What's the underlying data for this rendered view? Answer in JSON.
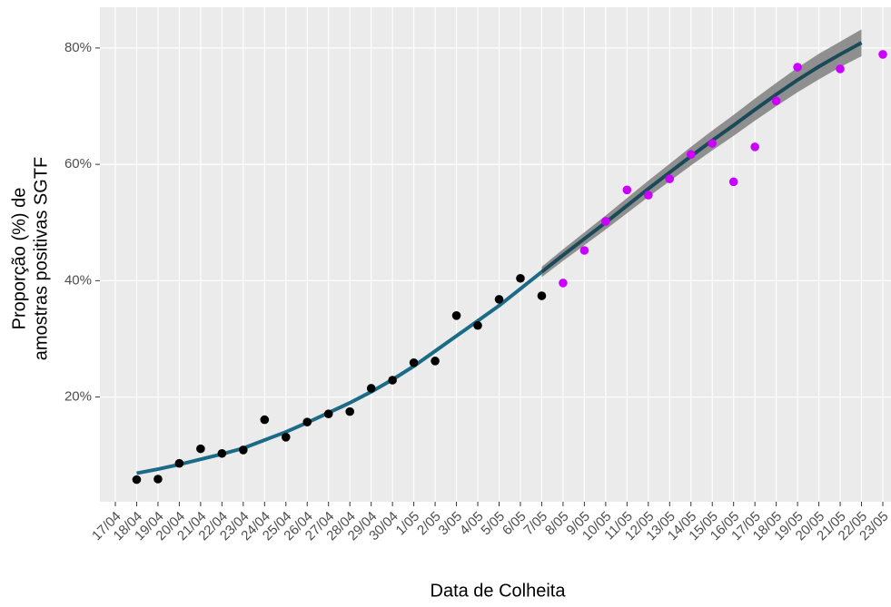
{
  "chart_data": {
    "type": "scatter",
    "x_label": "Data de Colheita",
    "y_label": [
      "Proporção (%) de",
      "amostras positivas SGTF"
    ],
    "categories": [
      "17/04",
      "18/04",
      "19/04",
      "20/04",
      "21/04",
      "22/04",
      "23/04",
      "24/04",
      "25/04",
      "26/04",
      "27/04",
      "28/04",
      "29/04",
      "30/04",
      "1/05",
      "2/05",
      "3/05",
      "4/05",
      "5/05",
      "6/05",
      "7/05",
      "8/05",
      "9/05",
      "10/05",
      "11/05",
      "12/05",
      "13/05",
      "14/05",
      "15/05",
      "16/05",
      "17/05",
      "18/05",
      "19/05",
      "20/05",
      "21/05",
      "22/05",
      "23/05"
    ],
    "ylim": [
      2,
      87
    ],
    "yticks": [
      {
        "value": 20,
        "label": "20%"
      },
      {
        "value": 40,
        "label": "40%"
      },
      {
        "value": 60,
        "label": "60%"
      },
      {
        "value": 80,
        "label": "80%"
      }
    ],
    "grid": true,
    "background": "#ebebeb",
    "series": [
      {
        "type": "scatter",
        "color": "#000000",
        "values": [
          null,
          5.8,
          5.9,
          8.6,
          11.1,
          10.3,
          10.9,
          16.1,
          13.1,
          15.7,
          17.1,
          17.5,
          21.5,
          22.9,
          25.9,
          26.2,
          34.0,
          32.3,
          36.8,
          40.4,
          37.4,
          null,
          null,
          null,
          null,
          null,
          null,
          null,
          null,
          null,
          null,
          null,
          null,
          null,
          null,
          null,
          null
        ]
      },
      {
        "type": "scatter",
        "color": "#cc00ff",
        "values": [
          null,
          null,
          null,
          null,
          null,
          null,
          null,
          null,
          null,
          null,
          null,
          null,
          null,
          null,
          null,
          null,
          null,
          null,
          null,
          null,
          null,
          39.6,
          45.2,
          50.2,
          55.6,
          54.7,
          57.5,
          61.7,
          63.6,
          57.0,
          63.0,
          70.9,
          76.7,
          null,
          76.4,
          null,
          78.9
        ]
      },
      {
        "type": "line",
        "color": "#1b6a86",
        "values": [
          null,
          6.9,
          7.6,
          8.4,
          9.3,
          10.2,
          11.2,
          12.6,
          14.0,
          15.6,
          17.3,
          19.0,
          20.9,
          23.0,
          25.3,
          27.9,
          30.5,
          33.1,
          35.7,
          38.6,
          41.5,
          null,
          null,
          null,
          null,
          null,
          null,
          null,
          null,
          null,
          null,
          null,
          null,
          null,
          null,
          null,
          null
        ]
      },
      {
        "type": "line",
        "color": "#1a4a58",
        "band_color": "#7f7f7f",
        "values": [
          null,
          null,
          null,
          null,
          null,
          null,
          null,
          null,
          null,
          null,
          null,
          null,
          null,
          null,
          null,
          null,
          null,
          null,
          null,
          null,
          41.5,
          44.4,
          47.2,
          50.0,
          52.9,
          55.8,
          58.6,
          61.4,
          64.1,
          66.7,
          69.4,
          72.0,
          74.5,
          76.8,
          78.9,
          80.9,
          null
        ],
        "lower": [
          null,
          null,
          null,
          null,
          null,
          null,
          null,
          null,
          null,
          null,
          null,
          null,
          null,
          null,
          null,
          null,
          null,
          null,
          null,
          null,
          40.6,
          43.4,
          46.1,
          48.8,
          51.6,
          54.4,
          57.1,
          59.8,
          62.4,
          64.9,
          67.5,
          70.0,
          72.4,
          74.6,
          76.7,
          78.6,
          null
        ],
        "upper": [
          null,
          null,
          null,
          null,
          null,
          null,
          null,
          null,
          null,
          null,
          null,
          null,
          null,
          null,
          null,
          null,
          null,
          null,
          null,
          null,
          42.4,
          45.4,
          48.3,
          51.2,
          54.2,
          57.2,
          60.1,
          63.0,
          65.8,
          68.5,
          71.3,
          74.0,
          76.6,
          79.0,
          81.1,
          83.2,
          null
        ]
      }
    ]
  }
}
